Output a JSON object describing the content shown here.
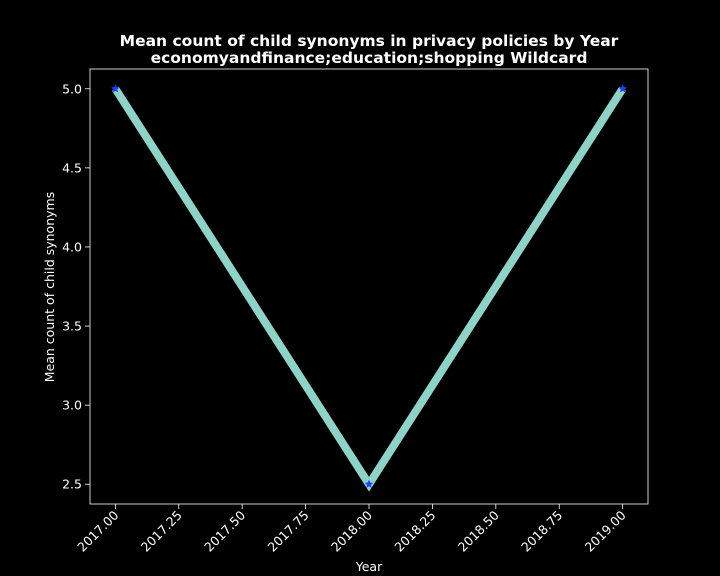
{
  "chart_data": {
    "type": "line",
    "title": "Mean count of child synonyms in privacy policies by Year",
    "subtitle": "economyandfinance;education;shopping Wildcard",
    "xlabel": "Year",
    "ylabel": "Mean count of child synonyms",
    "x": [
      2017,
      2018,
      2019
    ],
    "series": [
      {
        "values": [
          5.0,
          2.5,
          5.0
        ]
      }
    ],
    "xticks": [
      "2017.00",
      "2017.25",
      "2017.50",
      "2017.75",
      "2018.00",
      "2018.25",
      "2018.50",
      "2018.75",
      "2019.00"
    ],
    "yticks": [
      "2.5",
      "3.0",
      "3.5",
      "4.0",
      "4.5",
      "5.0"
    ],
    "xlim": [
      2016.9,
      2019.1
    ],
    "ylim": [
      2.375,
      5.125
    ],
    "grid": false,
    "colors": {
      "background": "#000000",
      "line": "#8dd3c7",
      "marker": "#1f3fff",
      "text": "#ffffff",
      "axis": "#ffffff"
    }
  }
}
